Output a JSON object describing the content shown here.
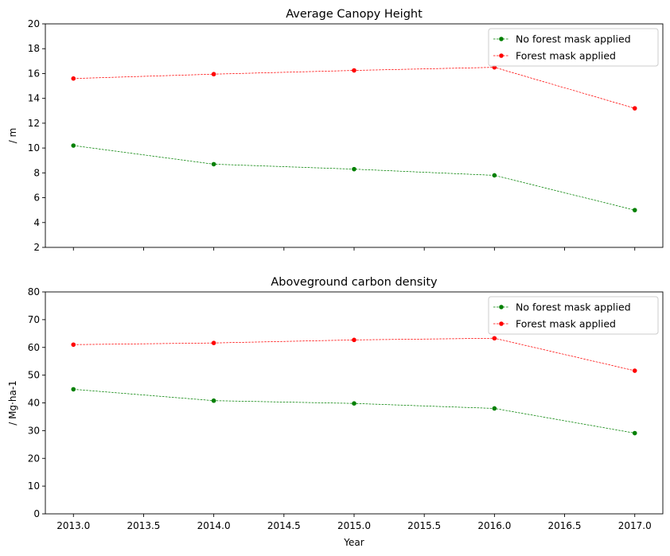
{
  "chart_data": [
    {
      "type": "line",
      "title": "Average Canopy Height",
      "xlabel": "",
      "ylabel": "/ m",
      "ylim": [
        2,
        20
      ],
      "yticks": [
        2,
        4,
        6,
        8,
        10,
        12,
        14,
        16,
        18,
        20
      ],
      "xlim": [
        2012.8,
        2017.2
      ],
      "xticks": [
        2013.0,
        2013.5,
        2014.0,
        2014.5,
        2015.0,
        2015.5,
        2016.0,
        2016.5,
        2017.0
      ],
      "show_xtick_labels": false,
      "x": [
        2013,
        2014,
        2015,
        2016,
        2017
      ],
      "legend_position": "top-right",
      "series": [
        {
          "name": "No forest mask applied",
          "color": "#008000",
          "values": [
            10.2,
            8.7,
            8.3,
            7.8,
            5.0
          ]
        },
        {
          "name": "Forest mask applied",
          "color": "#ff0000",
          "values": [
            15.6,
            15.95,
            16.25,
            16.5,
            13.2
          ]
        }
      ]
    },
    {
      "type": "line",
      "title": "Aboveground carbon density",
      "xlabel": "Year",
      "ylabel": "/ Mg·ha-1",
      "ylim": [
        0,
        80
      ],
      "yticks": [
        0,
        10,
        20,
        30,
        40,
        50,
        60,
        70,
        80
      ],
      "xlim": [
        2012.8,
        2017.2
      ],
      "xticks": [
        2013.0,
        2013.5,
        2014.0,
        2014.5,
        2015.0,
        2015.5,
        2016.0,
        2016.5,
        2017.0
      ],
      "xticklabels": [
        "2013.0",
        "2013.5",
        "2014.0",
        "2014.5",
        "2015.0",
        "2015.5",
        "2016.0",
        "2016.5",
        "2017.0"
      ],
      "show_xtick_labels": true,
      "x": [
        2013,
        2014,
        2015,
        2016,
        2017
      ],
      "legend_position": "top-right",
      "series": [
        {
          "name": "No forest mask applied",
          "color": "#008000",
          "values": [
            44.9,
            40.8,
            39.8,
            38.0,
            29.1
          ]
        },
        {
          "name": "Forest mask applied",
          "color": "#ff0000",
          "values": [
            61.0,
            61.6,
            62.7,
            63.3,
            51.6
          ]
        }
      ]
    }
  ]
}
